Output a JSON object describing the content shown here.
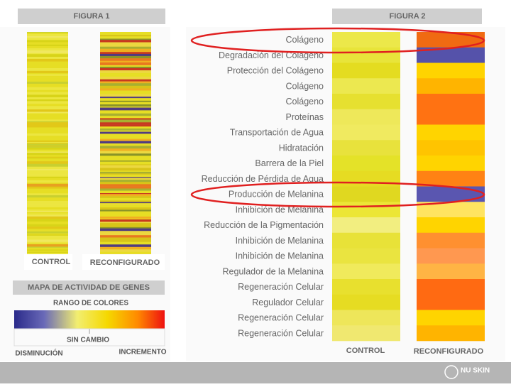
{
  "figure1": {
    "title": "FIGURA 1",
    "control_label": "CONTROL",
    "reconfigured_label": "RECONFIGURADO"
  },
  "legend": {
    "title": "MAPA DE ACTIVIDAD DE GENES",
    "subtitle": "RANGO DE COLORES",
    "no_change": "SIN CAMBIO",
    "decrease": "DISMINUCIÓN",
    "increase": "INCREMENTO"
  },
  "figure2": {
    "title": "FIGURA 2",
    "control_label": "CONTROL",
    "reconfigured_label": "RECONFIGURADO",
    "rows": [
      {
        "label": "Colágeno",
        "control_color": "#ece84a",
        "reconfigured_color": "#f06a12"
      },
      {
        "label": "Degradación del Colágeno",
        "control_color": "#e8e43a",
        "reconfigured_color": "#5552aa"
      },
      {
        "label": "Protección del Colágeno",
        "control_color": "#e4dc20",
        "reconfigured_color": "#ffd400"
      },
      {
        "label": "Colágeno",
        "control_color": "#ece850",
        "reconfigured_color": "#ffb400"
      },
      {
        "label": "Colágeno",
        "control_color": "#e6e030",
        "reconfigured_color": "#ff7212"
      },
      {
        "label": "Proteínas",
        "control_color": "#eee85a",
        "reconfigured_color": "#ff7212"
      },
      {
        "label": "Transportación de Agua",
        "control_color": "#f0ea60",
        "reconfigured_color": "#ffd400"
      },
      {
        "label": "Hidratación",
        "control_color": "#e8e23c",
        "reconfigured_color": "#ffc400"
      },
      {
        "label": "Barrera de la Piel",
        "control_color": "#e4e228",
        "reconfigured_color": "#ffd400"
      },
      {
        "label": "Reducción de Pérdida de Agua",
        "control_color": "#e6dc22",
        "reconfigured_color": "#ff8214"
      },
      {
        "label": "Producción de Melanina",
        "control_color": "#e0d820",
        "reconfigured_color": "#5a56b0"
      },
      {
        "label": "Inhibición de Melanina",
        "control_color": "#ece636",
        "reconfigured_color": "#ffe460"
      },
      {
        "label": "Reducción de la Pigmentación",
        "control_color": "#f2ee80",
        "reconfigured_color": "#ffd400"
      },
      {
        "label": "Inhibición de Melanina",
        "control_color": "#e8e238",
        "reconfigured_color": "#ff9030"
      },
      {
        "label": "Inhibición de Melanina",
        "control_color": "#eae440",
        "reconfigured_color": "#ff9850"
      },
      {
        "label": "Regulador de la Melanina",
        "control_color": "#f0ea5c",
        "reconfigured_color": "#ffb444"
      },
      {
        "label": "Regeneración Celular",
        "control_color": "#e8e02e",
        "reconfigured_color": "#ff6a12"
      },
      {
        "label": "Regulador Celular",
        "control_color": "#e6dc22",
        "reconfigured_color": "#ff6a12"
      },
      {
        "label": "Regeneración Celular",
        "control_color": "#eee65a",
        "reconfigured_color": "#ffd400"
      },
      {
        "label": "Regeneración Celular",
        "control_color": "#f0e870",
        "reconfigured_color": "#ffb400"
      }
    ]
  },
  "footer": {
    "logo": "NU SKIN"
  }
}
